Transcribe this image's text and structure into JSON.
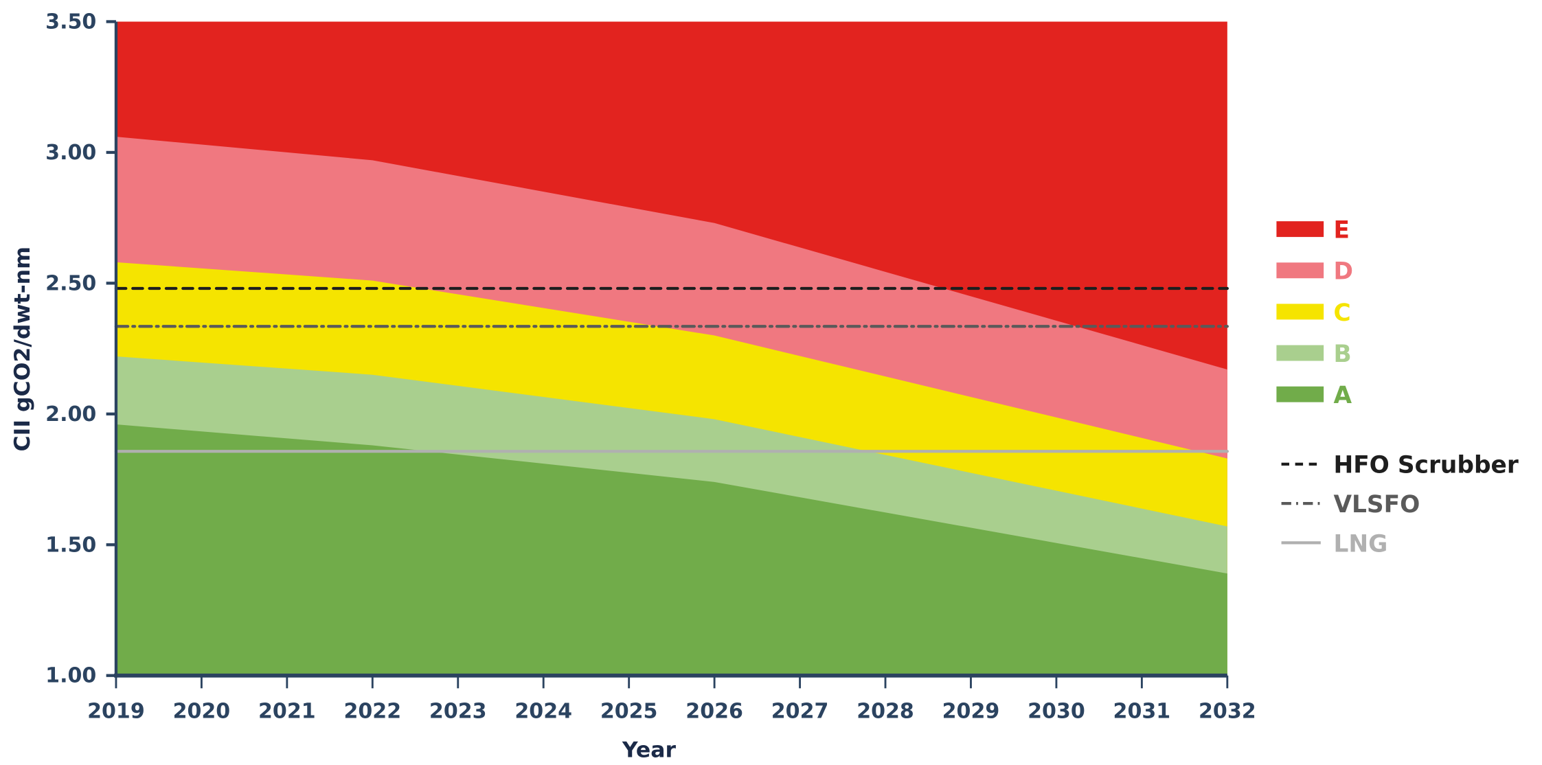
{
  "chart_data": {
    "type": "area",
    "title": "",
    "xlabel": "Year",
    "ylabel": "CII gCO2/dwt-nm",
    "xlim": [
      2019,
      2032
    ],
    "ylim": [
      1.0,
      3.5
    ],
    "x_ticks": [
      "2019",
      "2020",
      "2021",
      "2022",
      "2023",
      "2024",
      "2025",
      "2026",
      "2027",
      "2028",
      "2029",
      "2030",
      "2031",
      "2032"
    ],
    "y_ticks": [
      "1.00",
      "1.50",
      "2.00",
      "2.50",
      "3.00",
      "3.50"
    ],
    "grid": false,
    "legend_position": "right",
    "boundary_x": [
      2019,
      2022,
      2026,
      2032
    ],
    "bands": [
      {
        "name": "A",
        "color": "#71AC4A",
        "upper": [
          1.96,
          1.88,
          1.74,
          1.39
        ]
      },
      {
        "name": "B",
        "color": "#A9CF8E",
        "upper": [
          2.22,
          2.15,
          1.98,
          1.57
        ]
      },
      {
        "name": "C",
        "color": "#F5E400",
        "upper": [
          2.58,
          2.51,
          2.3,
          1.83
        ]
      },
      {
        "name": "D",
        "color": "#F07880",
        "upper": [
          3.06,
          2.97,
          2.73,
          2.17
        ]
      },
      {
        "name": "E",
        "color": "#E2231F",
        "upper": [
          3.5,
          3.5,
          3.5,
          3.5
        ]
      }
    ],
    "reference_lines": [
      {
        "name": "HFO Scrubber",
        "value": 2.48,
        "color": "#1E1E1E",
        "style": "dashed"
      },
      {
        "name": "VLSFO",
        "value": 2.335,
        "color": "#5A5A5A",
        "style": "dash-dot"
      },
      {
        "name": "LNG",
        "value": 1.857,
        "color": "#B0B0B0",
        "style": "solid"
      }
    ],
    "axis_color": "#2B4360"
  }
}
